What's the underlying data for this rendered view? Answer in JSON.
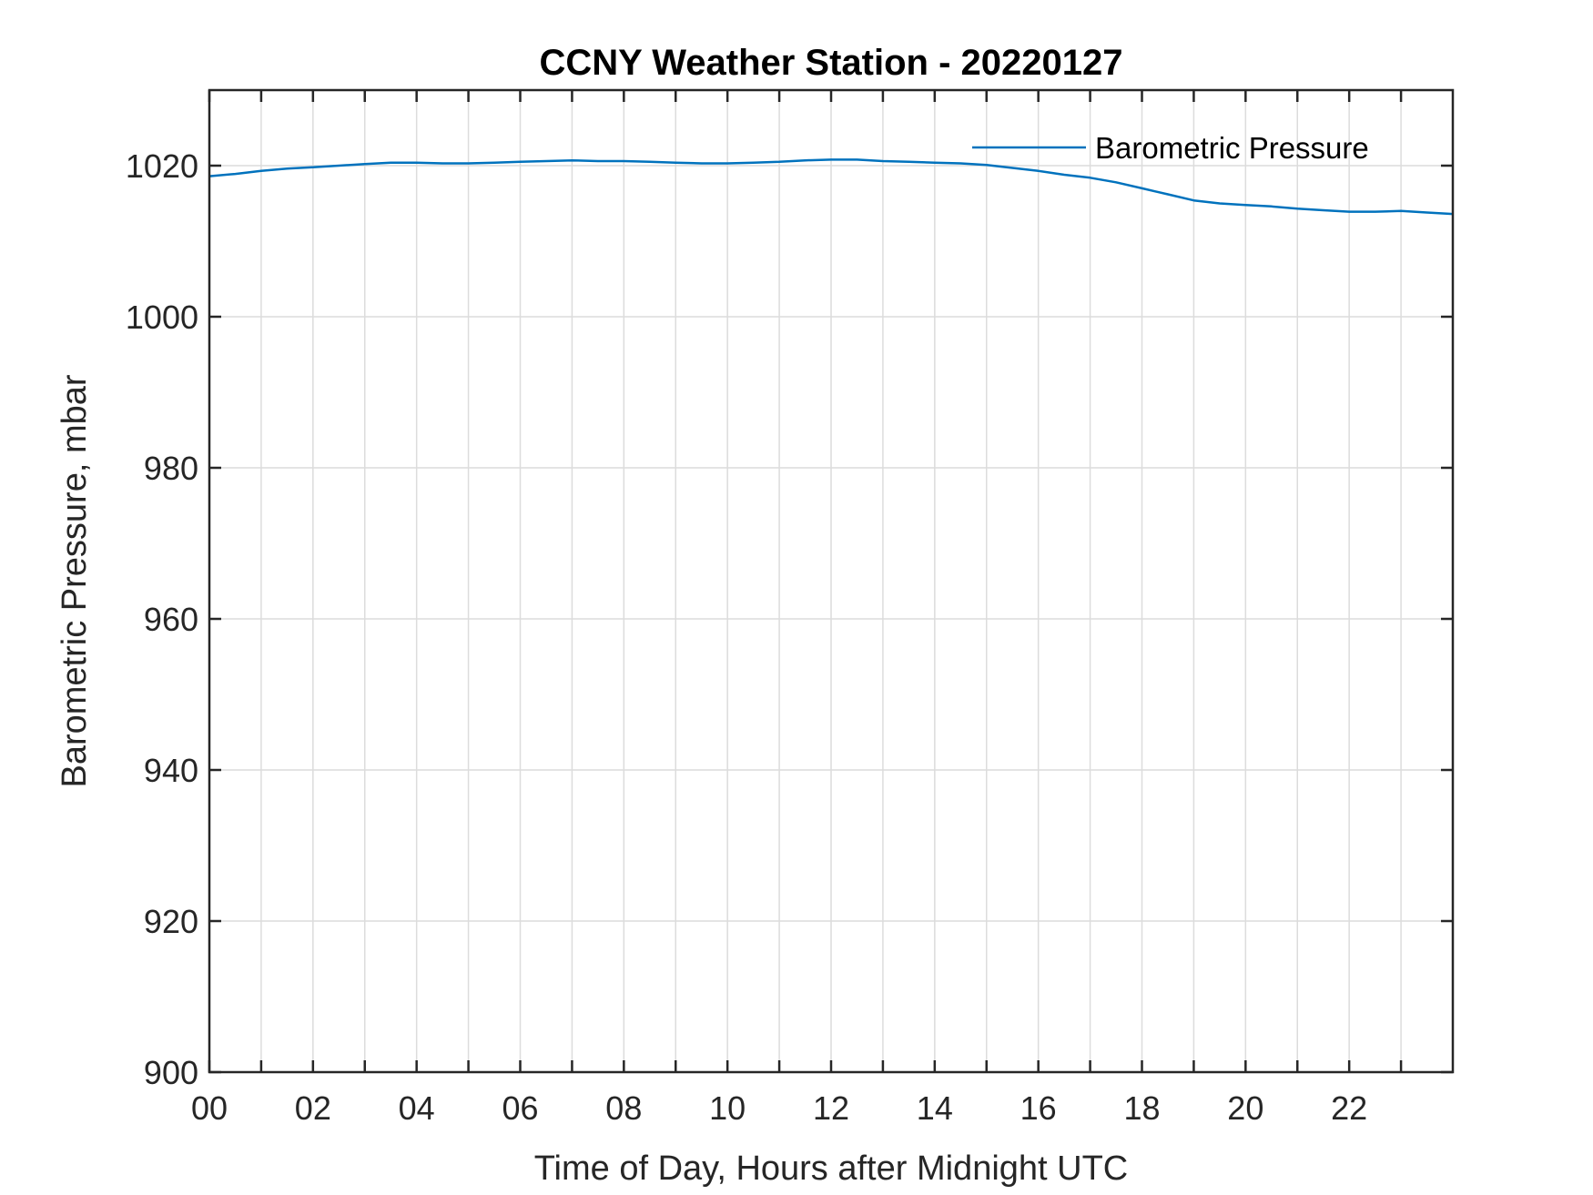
{
  "chart_data": {
    "type": "line",
    "title": "CCNY Weather Station - 20220127",
    "xlabel": "Time of Day, Hours after Midnight UTC",
    "ylabel": "Barometric Pressure, mbar",
    "xlim": [
      0,
      24
    ],
    "ylim": [
      900,
      1030
    ],
    "x_ticks": [
      0,
      2,
      4,
      6,
      8,
      10,
      12,
      14,
      16,
      18,
      20,
      22
    ],
    "x_tick_labels": [
      "00",
      "02",
      "04",
      "06",
      "08",
      "10",
      "12",
      "14",
      "16",
      "18",
      "20",
      "22"
    ],
    "x_minor_ticks": [
      1,
      3,
      5,
      7,
      9,
      11,
      13,
      15,
      17,
      19,
      21,
      23
    ],
    "y_ticks": [
      900,
      920,
      940,
      960,
      980,
      1000,
      1020
    ],
    "y_tick_labels": [
      "900",
      "920",
      "940",
      "960",
      "980",
      "1000",
      "1020"
    ],
    "grid": true,
    "legend_position": "top-right",
    "series": [
      {
        "name": "Barometric Pressure",
        "color": "#0072bd",
        "x": [
          0,
          0.5,
          1,
          1.5,
          2,
          2.5,
          3,
          3.5,
          4,
          4.5,
          5,
          5.5,
          6,
          6.5,
          7,
          7.5,
          8,
          8.5,
          9,
          9.5,
          10,
          10.5,
          11,
          11.5,
          12,
          12.5,
          13,
          13.5,
          14,
          14.5,
          15,
          15.5,
          16,
          16.5,
          17,
          17.5,
          18,
          18.5,
          19,
          19.5,
          20,
          20.5,
          21,
          21.5,
          22,
          22.5,
          23,
          23.5,
          24
        ],
        "y": [
          1018.6,
          1018.9,
          1019.3,
          1019.6,
          1019.8,
          1020.0,
          1020.2,
          1020.4,
          1020.4,
          1020.3,
          1020.3,
          1020.4,
          1020.5,
          1020.6,
          1020.7,
          1020.6,
          1020.6,
          1020.5,
          1020.4,
          1020.3,
          1020.3,
          1020.4,
          1020.5,
          1020.7,
          1020.8,
          1020.8,
          1020.6,
          1020.5,
          1020.4,
          1020.3,
          1020.1,
          1019.7,
          1019.3,
          1018.8,
          1018.4,
          1017.8,
          1017.0,
          1016.2,
          1015.4,
          1015.0,
          1014.8,
          1014.6,
          1014.3,
          1014.1,
          1013.9,
          1013.9,
          1014.0,
          1013.8,
          1013.6
        ]
      }
    ]
  }
}
